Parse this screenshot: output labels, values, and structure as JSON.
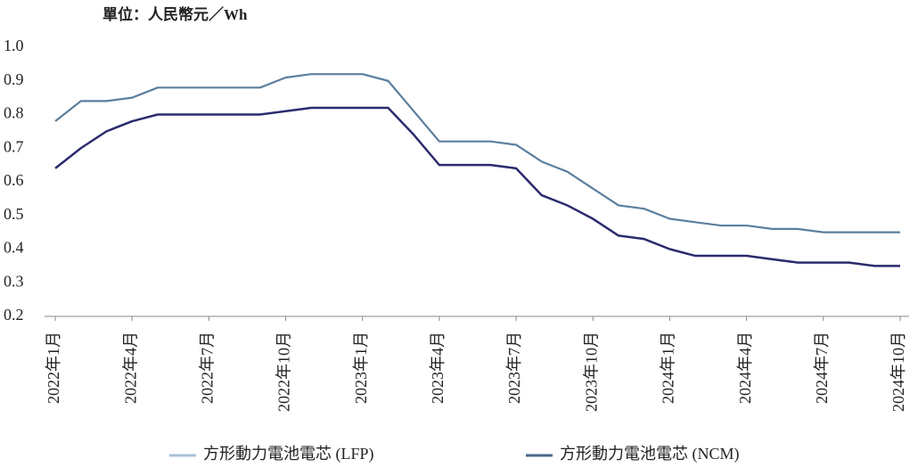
{
  "chart_data": {
    "type": "line",
    "title": "單位：人民幣元／Wh",
    "categories": [
      "2022年1月",
      null,
      null,
      "2022年4月",
      null,
      null,
      "2022年7月",
      null,
      null,
      "2022年10月",
      null,
      null,
      "2023年1月",
      null,
      null,
      "2023年4月",
      null,
      null,
      "2023年7月",
      null,
      null,
      "2023年10月",
      null,
      null,
      "2024年1月",
      null,
      null,
      "2024年4月",
      null,
      null,
      "2024年7月",
      null,
      null,
      "2024年10月"
    ],
    "series": [
      {
        "name": "方形動力電池電芯 (LFP)",
        "color": "#5b7f9e",
        "legend_color": "#a9bfd6",
        "values": [
          0.78,
          0.84,
          0.84,
          0.85,
          0.88,
          0.88,
          0.88,
          0.88,
          0.88,
          0.91,
          0.92,
          0.92,
          0.92,
          0.9,
          0.81,
          0.72,
          0.72,
          0.72,
          0.71,
          0.66,
          0.63,
          0.58,
          0.53,
          0.52,
          0.49,
          0.48,
          0.47,
          0.47,
          0.46,
          0.46,
          0.45,
          0.45,
          0.45,
          0.45
        ]
      },
      {
        "name": "方形動力電池電芯 (NCM)",
        "color": "#2b2b6e",
        "legend_color": "#4a6a8a",
        "values": [
          0.64,
          0.7,
          0.75,
          0.78,
          0.8,
          0.8,
          0.8,
          0.8,
          0.8,
          0.81,
          0.82,
          0.82,
          0.82,
          0.82,
          0.74,
          0.65,
          0.65,
          0.65,
          0.64,
          0.56,
          0.53,
          0.49,
          0.44,
          0.43,
          0.4,
          0.38,
          0.38,
          0.38,
          0.37,
          0.36,
          0.36,
          0.36,
          0.35,
          0.35
        ]
      }
    ],
    "ylim": [
      0.2,
      1.0
    ],
    "yticks": [
      0.2,
      0.3,
      0.4,
      0.5,
      0.6,
      0.7,
      0.8,
      0.9,
      {
        "value": 1.0,
        "label": "1.0"
      }
    ]
  }
}
